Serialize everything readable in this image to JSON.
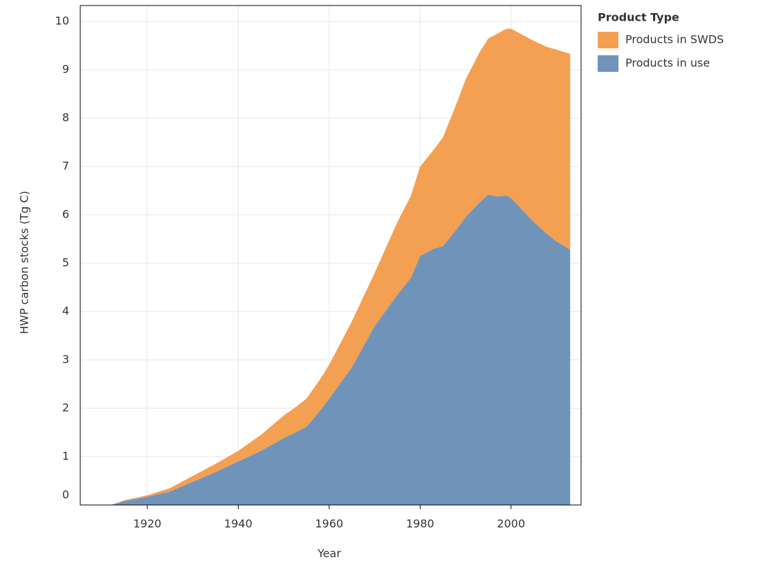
{
  "chart_data": {
    "type": "stacked_area",
    "x_label": "Year",
    "y_label": "HWP carbon stocks (Tg C)",
    "legend_title": "Product Type",
    "legend": "right",
    "grid": true,
    "x": [
      1912,
      1915,
      1920,
      1925,
      1930,
      1935,
      1940,
      1945,
      1950,
      1953,
      1955,
      1958,
      1960,
      1965,
      1970,
      1975,
      1978,
      1980,
      1983,
      1985,
      1988,
      1990,
      1993,
      1995,
      1997,
      1999,
      2000,
      2003,
      2005,
      2008,
      2010,
      2013
    ],
    "series": [
      {
        "name": "Products in SWDS",
        "color": "#f4a052",
        "values": [
          0,
          0.02,
          0.03,
          0.07,
          0.12,
          0.17,
          0.22,
          0.33,
          0.47,
          0.53,
          0.58,
          0.65,
          0.7,
          0.95,
          1.1,
          1.5,
          1.7,
          1.85,
          2.05,
          2.25,
          2.6,
          2.85,
          3.1,
          3.23,
          3.37,
          3.45,
          3.5,
          3.65,
          3.75,
          3.87,
          3.97,
          4.05
        ]
      },
      {
        "name": "Products in use",
        "color": "#7094b9",
        "values": [
          0,
          0.08,
          0.17,
          0.28,
          0.48,
          0.68,
          0.9,
          1.12,
          1.38,
          1.52,
          1.62,
          1.95,
          2.2,
          2.85,
          3.7,
          4.35,
          4.7,
          5.15,
          5.3,
          5.35,
          5.7,
          5.95,
          6.25,
          6.42,
          6.38,
          6.4,
          6.35,
          6.05,
          5.85,
          5.6,
          5.45,
          5.28
        ]
      }
    ],
    "xlim": [
      1905.25,
      2015.4
    ],
    "xticks": [
      1920,
      1940,
      1960,
      1980,
      2000
    ],
    "ylim": [
      0,
      10.33
    ],
    "yticks": [
      0,
      1,
      2,
      3,
      4,
      5,
      6,
      7,
      8,
      9,
      10
    ]
  }
}
